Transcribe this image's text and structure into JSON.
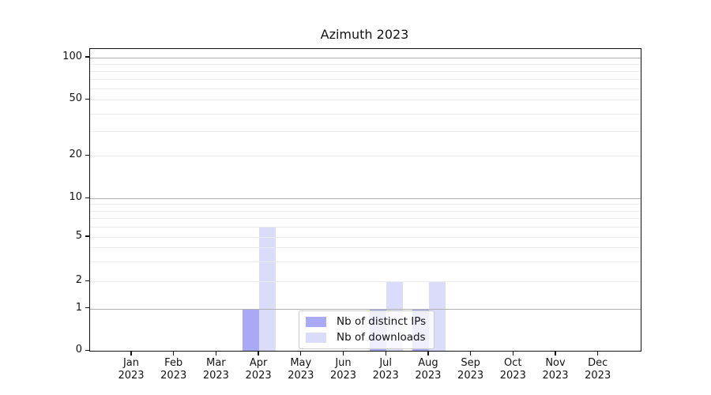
{
  "figure": {
    "title": "Azimuth 2023"
  },
  "chart_data": {
    "type": "bar",
    "title": "Azimuth 2023",
    "categories": [
      "Jan 2023",
      "Feb 2023",
      "Mar 2023",
      "Apr 2023",
      "May 2023",
      "Jun 2023",
      "Jul 2023",
      "Aug 2023",
      "Sep 2023",
      "Oct 2023",
      "Nov 2023",
      "Dec 2023"
    ],
    "month_labels": [
      "Jan",
      "Feb",
      "Mar",
      "Apr",
      "May",
      "Jun",
      "Jul",
      "Aug",
      "Sep",
      "Oct",
      "Nov",
      "Dec"
    ],
    "year_label": "2023",
    "series": [
      {
        "name": "Nb of distinct IPs",
        "color": "#a9a9f6",
        "values": [
          0,
          0,
          0,
          1,
          0,
          0,
          1,
          1,
          0,
          0,
          0,
          0
        ]
      },
      {
        "name": "Nb of downloads",
        "color": "#dbdbfa",
        "values": [
          0,
          0,
          0,
          6,
          0,
          0,
          2,
          2,
          0,
          0,
          0,
          0
        ]
      }
    ],
    "y_axis": {
      "scale": "symlog-like",
      "tick_values": [
        0,
        1,
        2,
        5,
        10,
        20,
        50,
        100
      ],
      "tick_labels": [
        "0",
        "1",
        "2",
        "5",
        "10",
        "20",
        "50",
        "100"
      ],
      "major_grid_values": [
        1,
        10,
        100
      ],
      "minor_grid_values": [
        2,
        3,
        4,
        5,
        6,
        7,
        8,
        9,
        20,
        30,
        40,
        50,
        60,
        70,
        80,
        90
      ],
      "ylim": [
        0,
        118
      ],
      "grid": true
    },
    "legend": {
      "items": [
        "Nb of distinct IPs",
        "Nb of downloads"
      ],
      "position": "inside-lower-center"
    }
  },
  "colors": {
    "background": "#ffffff",
    "spine": "#101010",
    "major_grid": "#b0b0b0",
    "minor_grid": "#ececec",
    "bar_distinct_ips": "#a9a9f6",
    "bar_downloads": "#dbdbfa",
    "legend_border": "#cccccc",
    "text": "#131313"
  }
}
